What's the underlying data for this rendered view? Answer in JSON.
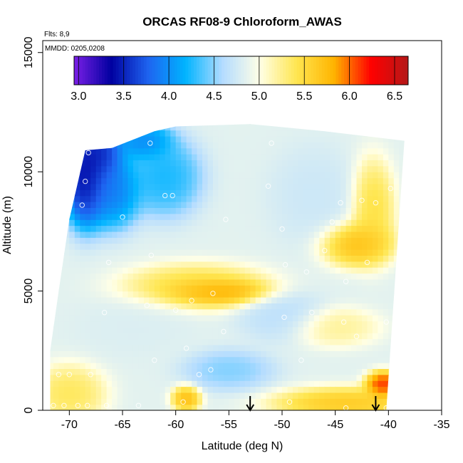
{
  "chart_data": {
    "type": "heatmap",
    "title": "ORCAS RF08-9 Chloroform_AWAS",
    "subtitle_flights": "Flts: 8,9",
    "subtitle_dates": "MMDD: 0205,0208",
    "xlabel": "Latitude (deg N)",
    "ylabel": "Altitude (m)",
    "xlim": [
      -72.5,
      -35
    ],
    "ylim": [
      0,
      15500
    ],
    "x_ticks": [
      -70,
      -65,
      -60,
      -55,
      -50,
      -45,
      -40,
      -35
    ],
    "y_ticks": [
      0,
      5000,
      10000,
      15000
    ],
    "x_tick_labels": [
      "-70",
      "-65",
      "-60",
      "-55",
      "-50",
      "-45",
      "-40",
      "-35"
    ],
    "y_tick_labels": [
      "0",
      "5000",
      "10000",
      "15000"
    ],
    "colorbar": {
      "range": [
        2.95,
        6.65
      ],
      "ticks": [
        3.0,
        3.5,
        4.0,
        4.5,
        5.0,
        5.5,
        6.0,
        6.5
      ],
      "tick_labels": [
        "3.0",
        "3.5",
        "4.0",
        "4.5",
        "5.0",
        "5.5",
        "6.0",
        "6.5"
      ],
      "colors": [
        "#7b1fe6",
        "#0000a0",
        "#1e64f0",
        "#00b4ff",
        "#b4dcff",
        "#ffffe6",
        "#ffe650",
        "#ffb400",
        "#ff0000",
        "#b41818"
      ]
    },
    "field_hotspots": [
      {
        "lat": -68.5,
        "alt": 9800,
        "value": 3.1,
        "sx": 1.5,
        "sy": 1500
      },
      {
        "lat": -67.0,
        "alt": 10800,
        "value": 3.3,
        "sx": 1.5,
        "sy": 900
      },
      {
        "lat": -66.0,
        "alt": 9300,
        "value": 3.7,
        "sx": 2.0,
        "sy": 1200
      },
      {
        "lat": -63.0,
        "alt": 11300,
        "value": 3.8,
        "sx": 2.0,
        "sy": 600
      },
      {
        "lat": -61.0,
        "alt": 9800,
        "value": 4.1,
        "sx": 2.5,
        "sy": 1200
      },
      {
        "lat": -56.0,
        "alt": 5000,
        "value": 6.1,
        "sx": 3.5,
        "sy": 400
      },
      {
        "lat": -58.0,
        "alt": 5200,
        "value": 5.6,
        "sx": 5.0,
        "sy": 700
      },
      {
        "lat": -43.0,
        "alt": 7000,
        "value": 5.9,
        "sx": 2.5,
        "sy": 700
      },
      {
        "lat": -41.5,
        "alt": 8500,
        "value": 5.6,
        "sx": 1.5,
        "sy": 1500
      },
      {
        "lat": -40.5,
        "alt": 1100,
        "value": 6.4,
        "sx": 1.2,
        "sy": 400
      },
      {
        "lat": -44.0,
        "alt": 300,
        "value": 5.8,
        "sx": 5.0,
        "sy": 500
      },
      {
        "lat": -59.0,
        "alt": 500,
        "value": 5.9,
        "sx": 1.0,
        "sy": 400
      },
      {
        "lat": -70.0,
        "alt": 700,
        "value": 5.5,
        "sx": 2.5,
        "sy": 900
      },
      {
        "lat": -55.0,
        "alt": 1700,
        "value": 4.4,
        "sx": 3.0,
        "sy": 600
      },
      {
        "lat": -50.0,
        "alt": 4000,
        "value": 4.6,
        "sx": 3.0,
        "sy": 800
      },
      {
        "lat": -47.0,
        "alt": 9000,
        "value": 4.7,
        "sx": 3.0,
        "sy": 1500
      },
      {
        "lat": -45.0,
        "alt": 3500,
        "value": 5.3,
        "sx": 3.0,
        "sy": 600
      },
      {
        "lat": -64.0,
        "alt": 3500,
        "value": 4.8,
        "sx": 4.0,
        "sy": 900
      }
    ],
    "samples": [
      {
        "lat": -68.2,
        "alt": 10800
      },
      {
        "lat": -68.5,
        "alt": 9600
      },
      {
        "lat": -68.8,
        "alt": 8600
      },
      {
        "lat": -62.5,
        "alt": 11800
      },
      {
        "lat": -62.4,
        "alt": 11200
      },
      {
        "lat": -61.0,
        "alt": 9000
      },
      {
        "lat": -65.0,
        "alt": 8100
      },
      {
        "lat": -66.3,
        "alt": 6200
      },
      {
        "lat": -62.3,
        "alt": 6500
      },
      {
        "lat": -51.0,
        "alt": 11200
      },
      {
        "lat": -51.3,
        "alt": 9400
      },
      {
        "lat": -50.0,
        "alt": 7600
      },
      {
        "lat": -49.7,
        "alt": 6100
      },
      {
        "lat": -47.7,
        "alt": 5800
      },
      {
        "lat": -46.0,
        "alt": 6700
      },
      {
        "lat": -44.5,
        "alt": 8700
      },
      {
        "lat": -45.3,
        "alt": 7900
      },
      {
        "lat": -42.0,
        "alt": 6200
      },
      {
        "lat": -42.5,
        "alt": 8800
      },
      {
        "lat": -41.2,
        "alt": 8700
      },
      {
        "lat": -39.8,
        "alt": 9300
      },
      {
        "lat": -56.5,
        "alt": 4900
      },
      {
        "lat": -58.5,
        "alt": 4600
      },
      {
        "lat": -60.0,
        "alt": 4200
      },
      {
        "lat": -62.7,
        "alt": 4400
      },
      {
        "lat": -66.7,
        "alt": 4100
      },
      {
        "lat": -55.5,
        "alt": 3300
      },
      {
        "lat": -49.8,
        "alt": 3900
      },
      {
        "lat": -47.2,
        "alt": 4100
      },
      {
        "lat": -44.2,
        "alt": 3700
      },
      {
        "lat": -43.0,
        "alt": 3100
      },
      {
        "lat": -40.2,
        "alt": 3700
      },
      {
        "lat": -59.0,
        "alt": 2600
      },
      {
        "lat": -57.8,
        "alt": 1500
      },
      {
        "lat": -56.7,
        "alt": 1700
      },
      {
        "lat": -62.0,
        "alt": 2100
      },
      {
        "lat": -71.0,
        "alt": 1500
      },
      {
        "lat": -70.0,
        "alt": 1500
      },
      {
        "lat": -68.0,
        "alt": 1500
      },
      {
        "lat": -71.5,
        "alt": 200
      },
      {
        "lat": -70.5,
        "alt": 200
      },
      {
        "lat": -69.2,
        "alt": 200
      },
      {
        "lat": -68.3,
        "alt": 200
      },
      {
        "lat": -66.5,
        "alt": 200
      },
      {
        "lat": -63.5,
        "alt": 200
      },
      {
        "lat": -59.3,
        "alt": 350
      },
      {
        "lat": -49.3,
        "alt": 350
      },
      {
        "lat": -44.0,
        "alt": 100
      },
      {
        "lat": -40.2,
        "alt": 100
      },
      {
        "lat": -39.5,
        "alt": 1000
      },
      {
        "lat": -48.2,
        "alt": 2100
      },
      {
        "lat": -60.3,
        "alt": 9000
      },
      {
        "lat": -55.3,
        "alt": 8000
      },
      {
        "lat": -44.0,
        "alt": 5400
      }
    ],
    "arrows": [
      {
        "lat": -53.0
      },
      {
        "lat": -41.2
      }
    ]
  }
}
